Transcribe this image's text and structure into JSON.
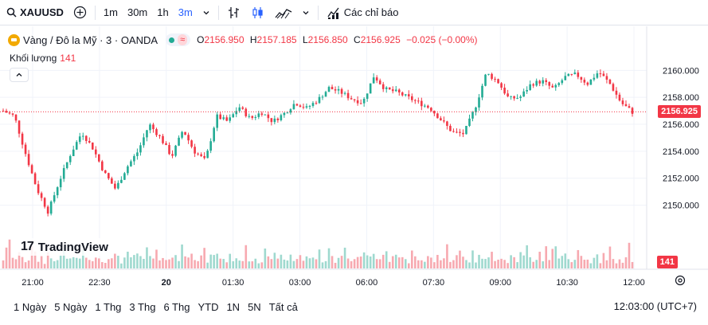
{
  "toolbar": {
    "symbol": "XAUUSD",
    "timeframes": [
      "1m",
      "30m",
      "1h",
      "3m"
    ],
    "active_timeframe": "3m",
    "indicators_label": "Các chỉ báo"
  },
  "legend": {
    "title": "Vàng / Đô la Mỹ · 3 · OANDA",
    "open_key": "O",
    "open": "2156.950",
    "high_key": "H",
    "high": "2157.185",
    "low_key": "L",
    "low": "2156.850",
    "close_key": "C",
    "close": "2156.925",
    "change": "−0.025 (−0.00%)",
    "volume_label": "Khối lượng",
    "volume_value": "141"
  },
  "price_axis": {
    "ticks": [
      "2160.000",
      "2158.000",
      "2156.000",
      "2154.000",
      "2152.000",
      "2150.000"
    ],
    "current_price": "2156.925",
    "current_volume": "141"
  },
  "time_axis": {
    "ticks": [
      "21:00",
      "22:30",
      "20",
      "01:30",
      "03:00",
      "06:00",
      "07:30",
      "09:00",
      "10:30",
      "12:00"
    ]
  },
  "watermark": {
    "logo": "17",
    "text": "TradingView"
  },
  "bottombar": {
    "ranges": [
      "1 Ngày",
      "5 Ngày",
      "1 Thg",
      "3 Thg",
      "6 Thg",
      "YTD",
      "1N",
      "5N",
      "Tất cả"
    ],
    "clock": "12:03:00 (UTC+7)"
  },
  "colors": {
    "up": "#22ab94",
    "down": "#f23645",
    "up_vol": "#9fd9cf",
    "down_vol": "#f7a9b0",
    "accent": "#2962ff"
  },
  "chart_data": {
    "type": "line",
    "series_kind": "candlestick",
    "ylim": [
      2148.5,
      2161.2
    ],
    "x": [
      "21:00",
      "22:30",
      "20",
      "01:30",
      "03:00",
      "06:00",
      "07:30",
      "09:00",
      "10:30",
      "12:00"
    ],
    "path": [
      2157.0,
      2156.6,
      2153.8,
      2151.2,
      2149.5,
      2151.8,
      2153.8,
      2155.4,
      2154.2,
      2152.4,
      2151.2,
      2152.8,
      2154.0,
      2156.0,
      2155.0,
      2153.6,
      2155.6,
      2154.0,
      2153.3,
      2156.6,
      2156.2,
      2157.3,
      2156.4,
      2156.9,
      2156.2,
      2156.8,
      2157.6,
      2157.2,
      2157.8,
      2158.7,
      2158.4,
      2157.9,
      2157.6,
      2159.6,
      2158.6,
      2158.4,
      2158.0,
      2157.6,
      2157.2,
      2156.3,
      2155.4,
      2155.3,
      2157.2,
      2159.8,
      2159.2,
      2157.9,
      2158.0,
      2159.0,
      2159.2,
      2158.6,
      2159.5,
      2159.7,
      2159.0,
      2159.9,
      2159.0,
      2157.6,
      2156.9
    ],
    "volume_range": [
      0,
      260
    ],
    "volume_pattern": [
      60,
      95,
      140,
      80,
      55,
      70,
      90,
      45,
      60,
      110,
      75,
      50,
      65,
      40,
      85,
      60,
      45,
      70,
      55,
      100,
      65,
      50,
      75,
      45,
      60,
      140,
      55,
      40,
      70,
      90,
      60,
      45,
      55,
      80,
      50,
      65,
      85,
      45,
      60,
      75,
      50,
      70,
      95,
      55,
      45,
      120,
      60,
      50,
      80,
      65,
      100,
      55,
      45,
      70,
      85,
      60,
      141
    ]
  }
}
